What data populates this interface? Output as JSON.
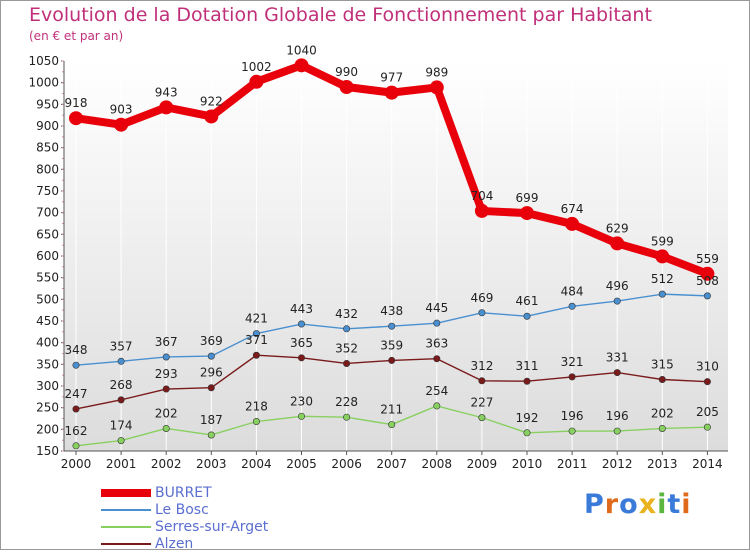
{
  "header": {
    "title": "Evolution de la Dotation Globale de Fonctionnement par Habitant",
    "subtitle": "(en € et par an)"
  },
  "logo": {
    "text": "Proxiti",
    "colors": [
      "#3a7ad9",
      "#e06a1b",
      "#3a7ad9",
      "#e8b31c",
      "#5bb640",
      "#3a7ad9",
      "#e06a1b"
    ]
  },
  "chart_data": {
    "type": "line",
    "x": [
      "2000",
      "2001",
      "2002",
      "2003",
      "2004",
      "2005",
      "2006",
      "2007",
      "2008",
      "2009",
      "2010",
      "2011",
      "2012",
      "2013",
      "2014"
    ],
    "ylim": [
      150,
      1050
    ],
    "yticks": [
      150,
      200,
      250,
      300,
      350,
      400,
      450,
      500,
      550,
      600,
      650,
      700,
      750,
      800,
      850,
      900,
      950,
      1000,
      1050
    ],
    "grid": "vertical",
    "legend": "bottom-left",
    "series": [
      {
        "name": "BURRET",
        "color": "#e8000b",
        "values": [
          918,
          903,
          943,
          922,
          1002,
          1040,
          990,
          977,
          989,
          704,
          699,
          674,
          629,
          599,
          559
        ]
      },
      {
        "name": "Le Bosc",
        "color": "#4a90d0",
        "values": [
          348,
          357,
          367,
          369,
          421,
          443,
          432,
          438,
          445,
          469,
          461,
          484,
          496,
          512,
          508
        ]
      },
      {
        "name": "Serres-sur-Arget",
        "color": "#88d060",
        "values": [
          162,
          174,
          202,
          187,
          218,
          230,
          228,
          211,
          254,
          227,
          192,
          196,
          196,
          202,
          205
        ]
      },
      {
        "name": "Alzen",
        "color": "#7a1a1a",
        "values": [
          247,
          268,
          293,
          296,
          371,
          365,
          352,
          359,
          363,
          312,
          311,
          321,
          331,
          315,
          310
        ]
      }
    ]
  }
}
